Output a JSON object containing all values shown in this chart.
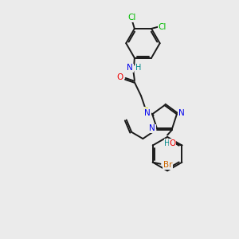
{
  "bg_color": "#ebebeb",
  "bond_color": "#1a1a1a",
  "atom_colors": {
    "Cl": "#00bb00",
    "N": "#0000ee",
    "H": "#008888",
    "O": "#ee0000",
    "S": "#cccc00",
    "Br": "#cc6600"
  },
  "figsize": [
    3.0,
    3.0
  ],
  "dpi": 100
}
